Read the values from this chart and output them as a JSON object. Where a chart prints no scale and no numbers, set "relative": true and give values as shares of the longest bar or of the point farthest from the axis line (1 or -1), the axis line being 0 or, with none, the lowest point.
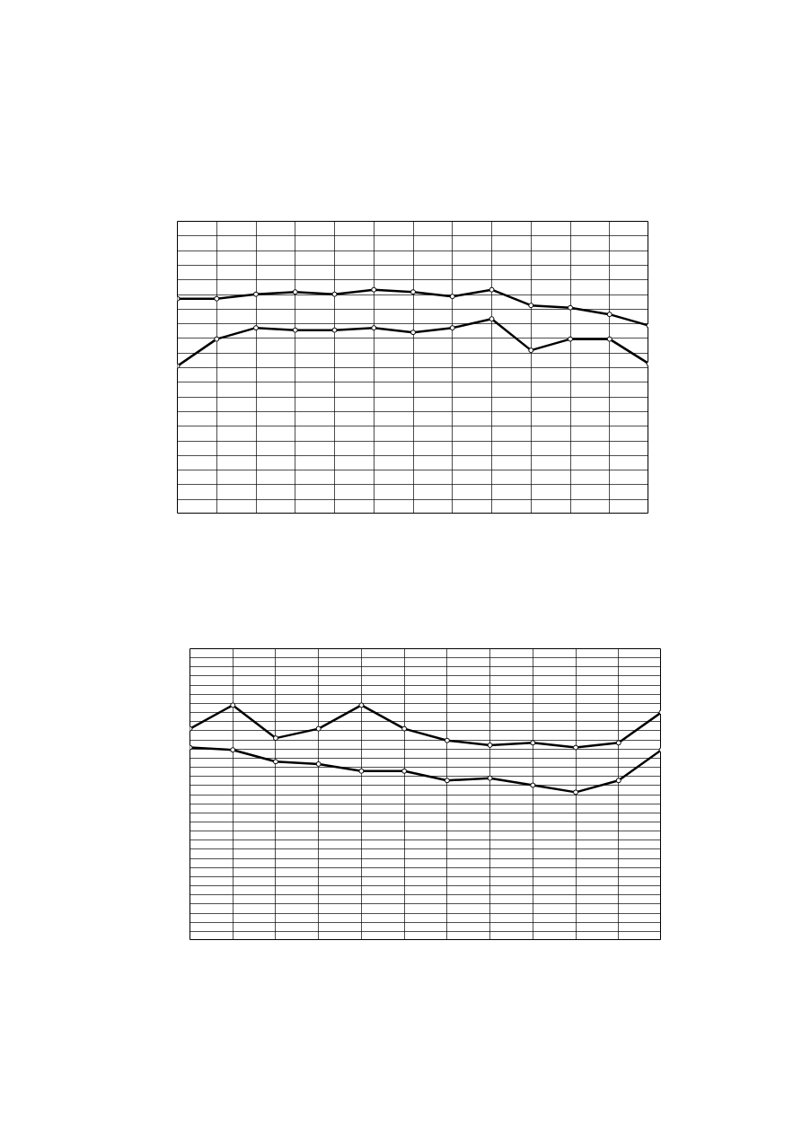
{
  "chart_data": [
    {
      "type": "line",
      "relative": true,
      "categories": [
        null,
        null,
        null,
        null,
        null,
        null,
        null,
        null,
        null,
        null,
        null,
        null,
        null
      ],
      "marker": "circle",
      "grid": true,
      "tick_labels": false,
      "series": [
        {
          "color": "#000000",
          "values": [
            0.96,
            0.96,
            0.98,
            0.99,
            0.98,
            1,
            0.99,
            0.97,
            1,
            0.93,
            0.92,
            0.89,
            0.84
          ]
        },
        {
          "color": "#000000",
          "values": [
            0.66,
            0.78,
            0.83,
            0.82,
            0.82,
            0.83,
            0.81,
            0.83,
            0.87,
            0.73,
            0.78,
            0.78,
            0.67
          ]
        }
      ]
    },
    {
      "type": "line",
      "relative": true,
      "categories": [
        null,
        null,
        null,
        null,
        null,
        null,
        null,
        null,
        null,
        null,
        null,
        null
      ],
      "marker": "circle",
      "grid": true,
      "tick_labels": false,
      "series": [
        {
          "color": "#000000",
          "values": [
            0.9,
            1,
            0.86,
            0.9,
            1,
            0.9,
            0.85,
            0.83,
            0.84,
            0.82,
            0.84,
            0.97
          ]
        },
        {
          "color": "#000000",
          "values": [
            0.82,
            0.81,
            0.76,
            0.75,
            0.72,
            0.72,
            0.68,
            0.69,
            0.66,
            0.63,
            0.68,
            0.81
          ]
        }
      ]
    }
  ]
}
